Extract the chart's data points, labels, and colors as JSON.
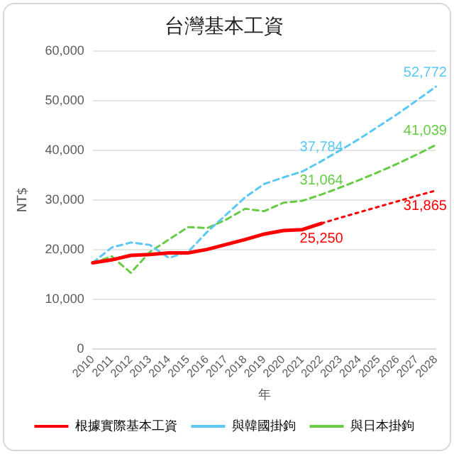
{
  "chart_data": {
    "type": "line",
    "title": "台灣基本工資",
    "xlabel": "年",
    "ylabel": "NT$",
    "categories": [
      "2010",
      "2011",
      "2012",
      "2013",
      "2014",
      "2015",
      "2016",
      "2017",
      "2018",
      "2019",
      "2020",
      "2021",
      "2022",
      "2023",
      "2024",
      "2025",
      "2026",
      "2027",
      "2028"
    ],
    "ylim": [
      0,
      60000
    ],
    "yticks": [
      {
        "value": 0,
        "label": "0"
      },
      {
        "value": 10000,
        "label": "10,000"
      },
      {
        "value": 20000,
        "label": "20,000"
      },
      {
        "value": 30000,
        "label": "30,000"
      },
      {
        "value": 40000,
        "label": "40,000"
      },
      {
        "value": 50000,
        "label": "50,000"
      },
      {
        "value": 60000,
        "label": "60,000"
      }
    ],
    "grid": "y",
    "legend": "bottom",
    "marker": "none",
    "series": [
      {
        "name": "根據實際基本工資",
        "color": "#ff0000",
        "line_style": "solid",
        "values": [
          17300,
          17900,
          18800,
          19000,
          19300,
          19300,
          20000,
          21000,
          22000,
          23100,
          23800,
          24000,
          25250,
          null,
          null,
          null,
          null,
          null,
          null
        ],
        "value_labels": [
          null,
          null,
          null,
          null,
          null,
          null,
          null,
          null,
          null,
          null,
          null,
          null,
          "25,250",
          null,
          null,
          null,
          null,
          null,
          null
        ]
      },
      {
        "color": "#ff0000",
        "line_style": "dotted",
        "values": [
          null,
          null,
          null,
          null,
          null,
          null,
          null,
          null,
          null,
          null,
          null,
          null,
          25250,
          26400,
          27500,
          28600,
          29700,
          30800,
          31865
        ],
        "value_labels": [
          null,
          null,
          null,
          null,
          null,
          null,
          null,
          null,
          null,
          null,
          null,
          null,
          null,
          null,
          null,
          null,
          null,
          null,
          "31,865"
        ]
      },
      {
        "name": "與韓國掛鉤",
        "color": "#5bc8f5",
        "line_style": "dashed",
        "values": [
          17300,
          20400,
          21400,
          20900,
          18300,
          19500,
          23500,
          27000,
          30500,
          33200,
          34500,
          35700,
          37784,
          40000,
          42300,
          44800,
          47300,
          50000,
          52772
        ],
        "value_labels": [
          null,
          null,
          null,
          null,
          null,
          null,
          null,
          null,
          null,
          null,
          null,
          null,
          "37,784",
          null,
          null,
          null,
          null,
          null,
          "52,772"
        ]
      },
      {
        "name": "與日本掛鉤",
        "color": "#66cc44",
        "line_style": "dashed",
        "values": [
          17300,
          18600,
          15300,
          19500,
          22000,
          24500,
          24300,
          26000,
          28200,
          27700,
          29400,
          29800,
          31064,
          32500,
          34000,
          35600,
          37300,
          39100,
          41039
        ],
        "value_labels": [
          null,
          null,
          null,
          null,
          null,
          null,
          null,
          null,
          null,
          null,
          null,
          null,
          "31,064",
          null,
          null,
          null,
          null,
          null,
          "41,039"
        ]
      }
    ]
  }
}
